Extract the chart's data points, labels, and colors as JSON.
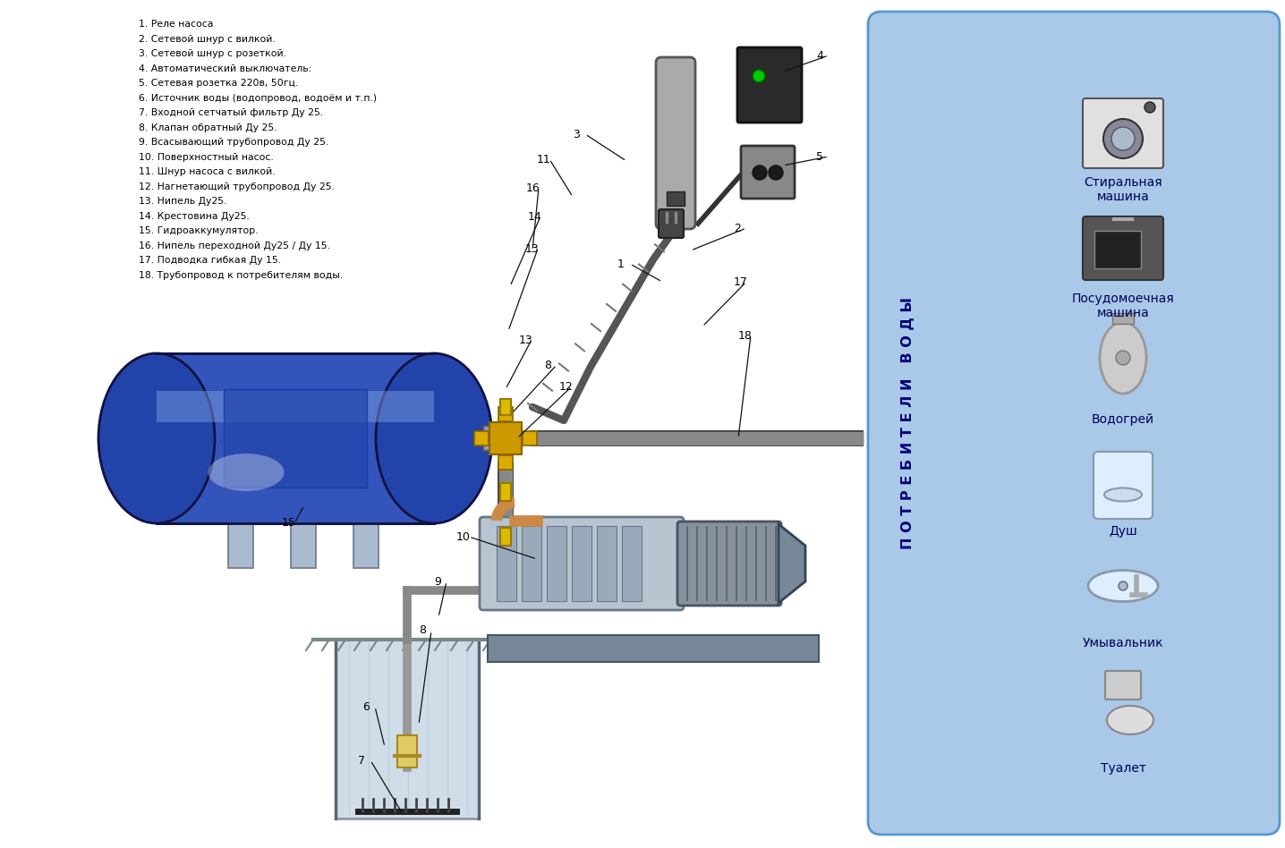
{
  "legend_items": [
    "1. Реле насоса",
    "2. Сетевой шнур с вилкой.",
    "3. Сетевой шнур с розеткой.",
    "4. Автоматический выключатель:",
    "5. Сетевая розетка 220в, 50гц.",
    "6. Источник воды (водопровод, водоём и т.п.)",
    "7. Входной сетчатый фильтр Ду 25.",
    "8. Клапан обратный Ду 25.",
    "9. Всасывающий трубопровод Ду 25.",
    "10. Поверхностный насос.",
    "11. Шнур насоса с вилкой.",
    "12. Нагнетающий трубопровод Ду 25.",
    "13. Нипель Ду25.",
    "14. Крестовина Ду25.",
    "15. Гидроаккумулятор.",
    "16. Нипель переходной Ду25 / Ду 15.",
    "17. Подводка гибкая Ду 15.",
    "18. Трубопровод к потребителям воды."
  ],
  "consumers": [
    "Стиральная\nмашина",
    "Посудомоечная\nмашина",
    "Водогрей",
    "Душ",
    "Умывальник",
    "Туалет"
  ],
  "panel_label": "П О Т Р Е Б И Т Е Л И   В О Д Ы",
  "bg_color": "#ffffff",
  "panel_bg": "#aac8e8",
  "label_color": "#000000",
  "number_color": "#000000",
  "tank_color_body": "#3355bb",
  "tank_color_dome": "#2244aa",
  "tank_color_edge": "#111144",
  "pipe_color": "#888888",
  "pipe_edge": "#444444",
  "cross_color": "#cc9900",
  "cross_edge": "#886600",
  "nipple_color": "#ddbb00",
  "nipple_edge": "#997700"
}
